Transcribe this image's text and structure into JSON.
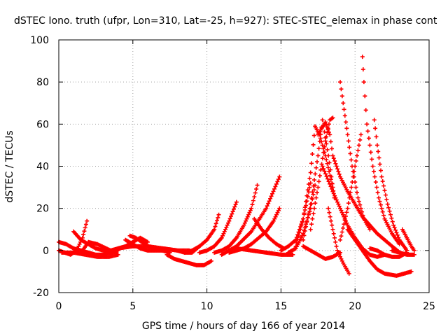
{
  "chart_data": {
    "type": "scatter",
    "title": "dSTEC Iono. truth (ufpr, Lon=310, Lat=-25, h=927): STEC-STEC_elemax in phase cont",
    "xlabel": "GPS time / hours of day 166 of year 2014",
    "ylabel": "dSTEC  / TECUs",
    "xlim": [
      0,
      25
    ],
    "ylim": [
      -20,
      100
    ],
    "xticks": [
      0,
      5,
      10,
      15,
      20,
      25
    ],
    "yticks": [
      -20,
      0,
      20,
      40,
      60,
      80,
      100
    ],
    "xtick_labels": [
      "0",
      "5",
      "10",
      "15",
      "20",
      "25"
    ],
    "ytick_labels": [
      "-20",
      "0",
      "20",
      "40",
      "60",
      "80",
      "100"
    ],
    "grid": true,
    "marker": "+",
    "color": "#ff0000",
    "series": [
      {
        "x": [
          0.0,
          0.5,
          1.0,
          1.5,
          2.0,
          2.5,
          3.0,
          3.5,
          4.0
        ],
        "y": [
          4,
          3,
          1,
          0,
          -1,
          -2,
          -2,
          -1,
          0
        ]
      },
      {
        "x": [
          0.0,
          0.4,
          0.8,
          1.2,
          1.6,
          1.9
        ],
        "y": [
          0,
          -1,
          -2,
          0,
          6,
          14
        ]
      },
      {
        "x": [
          1.0,
          1.5,
          2.0,
          2.5,
          3.0,
          3.6
        ],
        "y": [
          9,
          5,
          3,
          1,
          0,
          -1
        ]
      },
      {
        "x": [
          0.2,
          1.0,
          1.8,
          2.6,
          3.4,
          4.0
        ],
        "y": [
          -1,
          -1,
          -2,
          -3,
          -3,
          -2
        ]
      },
      {
        "x": [
          1.5,
          2.0,
          2.6,
          3.2,
          3.8
        ],
        "y": [
          -1,
          4,
          3,
          1,
          -1
        ]
      },
      {
        "x": [
          3.5,
          4.0,
          4.5,
          5.0,
          5.5,
          6.0
        ],
        "y": [
          0,
          1,
          2,
          4,
          6,
          4
        ]
      },
      {
        "x": [
          4.5,
          5.0,
          5.5,
          6.0,
          6.5,
          7.0
        ],
        "y": [
          5,
          3,
          1,
          0,
          0,
          0
        ]
      },
      {
        "x": [
          4.8,
          5.2,
          5.6,
          6.0,
          6.5,
          7.0,
          7.5
        ],
        "y": [
          7,
          6,
          4,
          2,
          1,
          0,
          -1
        ]
      },
      {
        "x": [
          4.0,
          5.0,
          6.0,
          7.0,
          8.0,
          8.8
        ],
        "y": [
          1,
          2,
          2,
          1,
          0,
          0
        ]
      },
      {
        "x": [
          7.3,
          7.8,
          8.3,
          8.8,
          9.3,
          9.8,
          10.3
        ],
        "y": [
          -2,
          -4,
          -5,
          -6,
          -7,
          -7,
          -5
        ]
      },
      {
        "x": [
          7.0,
          8.0,
          8.5,
          9.0,
          9.5
        ],
        "y": [
          1,
          0,
          -1,
          -1,
          2
        ]
      },
      {
        "x": [
          8.5,
          9.0,
          9.5,
          10.0,
          10.5,
          10.8
        ],
        "y": [
          -1,
          0,
          2,
          5,
          10,
          17
        ]
      },
      {
        "x": [
          9.5,
          10.0,
          10.5,
          11.0,
          11.5,
          12.0
        ],
        "y": [
          -1,
          0,
          2,
          6,
          14,
          23
        ]
      },
      {
        "x": [
          10.5,
          11.0,
          11.5,
          12.0,
          12.5,
          13.0,
          13.4
        ],
        "y": [
          -1,
          0,
          2,
          6,
          12,
          20,
          31
        ]
      },
      {
        "x": [
          11.0,
          12.0,
          13.0,
          14.0,
          14.9
        ],
        "y": [
          -2,
          2,
          9,
          20,
          35
        ]
      },
      {
        "x": [
          11.5,
          12.0,
          12.5,
          13.0,
          13.5,
          14.0,
          14.5,
          14.9
        ],
        "y": [
          -1,
          0,
          1,
          3,
          6,
          9,
          14,
          20
        ]
      },
      {
        "x": [
          13.2,
          13.7,
          14.2,
          14.7,
          15.2
        ],
        "y": [
          15,
          10,
          6,
          3,
          1
        ]
      },
      {
        "x": [
          12.0,
          13.0,
          14.0,
          15.0,
          15.8
        ],
        "y": [
          1,
          0,
          -1,
          -2,
          -2
        ]
      },
      {
        "x": [
          15.0,
          15.5,
          16.0,
          16.5,
          17.0
        ],
        "y": [
          0,
          2,
          5,
          15,
          32
        ]
      },
      {
        "x": [
          15.5,
          16.0,
          16.5,
          17.0,
          17.3
        ],
        "y": [
          -1,
          1,
          8,
          20,
          31
        ]
      },
      {
        "x": [
          16.0,
          16.5,
          17.0,
          17.3,
          17.6,
          18.0,
          18.5
        ],
        "y": [
          2,
          15,
          37,
          59,
          55,
          45,
          30
        ]
      },
      {
        "x": [
          16.5,
          17.0,
          17.5,
          17.8,
          18.2,
          18.6
        ],
        "y": [
          5,
          22,
          45,
          62,
          45,
          25
        ]
      },
      {
        "x": [
          17.0,
          17.5,
          18.0,
          18.3,
          18.5
        ],
        "y": [
          10,
          30,
          52,
          62,
          63
        ]
      },
      {
        "x": [
          17.5,
          18.0,
          18.3,
          18.5,
          19.0,
          19.5,
          20.0,
          20.5,
          21.5,
          22.5,
          23.2
        ],
        "y": [
          55,
          61,
          55,
          45,
          35,
          28,
          22,
          16,
          8,
          2,
          -2
        ]
      },
      {
        "x": [
          18.2,
          18.5,
          18.8,
          19.2,
          19.6
        ],
        "y": [
          20,
          10,
          0,
          -6,
          -11
        ]
      },
      {
        "x": [
          16.5,
          17.0,
          17.5,
          18.0,
          18.5,
          19.0
        ],
        "y": [
          2,
          0,
          -2,
          -4,
          -3,
          -1
        ]
      },
      {
        "x": [
          17.8,
          18.5,
          19.0,
          19.5,
          20.0,
          20.5,
          21.0,
          21.5,
          22.0
        ],
        "y": [
          40,
          28,
          20,
          12,
          6,
          1,
          -2,
          -3,
          -2
        ]
      },
      {
        "x": [
          19.0,
          19.2,
          19.5,
          19.8,
          20.2,
          20.6,
          21.0
        ],
        "y": [
          80,
          70,
          55,
          40,
          25,
          15,
          10
        ]
      },
      {
        "x": [
          19.0,
          19.5,
          20.0,
          20.4
        ],
        "y": [
          5,
          20,
          40,
          55
        ]
      },
      {
        "x": [
          20.5,
          20.6,
          20.8,
          21.2,
          21.6,
          22.0,
          22.5,
          23.0
        ],
        "y": [
          92,
          80,
          60,
          40,
          25,
          15,
          8,
          3
        ]
      },
      {
        "x": [
          19.5,
          20.0,
          20.5,
          21.0,
          21.5,
          22.0,
          22.8,
          23.8
        ],
        "y": [
          10,
          5,
          0,
          -5,
          -9,
          -11,
          -12,
          -10
        ]
      },
      {
        "x": [
          21.3,
          21.5,
          21.8,
          22.2,
          22.6,
          23.0,
          23.5
        ],
        "y": [
          62,
          50,
          35,
          22,
          12,
          5,
          0
        ]
      },
      {
        "x": [
          21.0,
          21.5,
          22.0,
          22.5,
          23.0,
          23.5
        ],
        "y": [
          1,
          0,
          -2,
          -3,
          -3,
          -1
        ]
      },
      {
        "x": [
          23.2,
          23.5,
          23.8,
          24.0
        ],
        "y": [
          10,
          6,
          2,
          0
        ]
      },
      {
        "x": [
          22.5,
          23.0,
          23.5,
          24.0
        ],
        "y": [
          0,
          -1,
          -2,
          -2
        ]
      }
    ]
  }
}
